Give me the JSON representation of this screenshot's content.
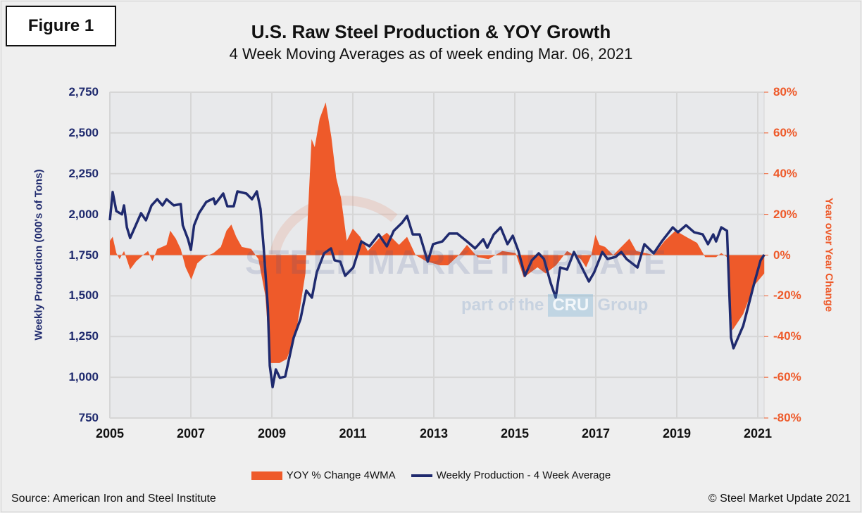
{
  "figure_label": "Figure 1",
  "watermark": {
    "brand": "STEEL MARKET UPDATE",
    "prefix": "part of the",
    "cru": "CRU",
    "suffix": "Group"
  },
  "source": "Source: American Iron and Steel Institute",
  "copyright": "© Steel Market Update 2021",
  "chart_data": {
    "type": "line+area",
    "title": "U.S. Raw Steel Production & YOY Growth",
    "subtitle": "4 Week Moving Averages as of week ending Mar. 06, 2021",
    "ylabel_left": "Weekly Production (000's of Tons)",
    "ylabel_right": "Year over Year Change",
    "xlim": [
      2005,
      2021.16
    ],
    "ylim_left": [
      750,
      2750
    ],
    "ylim_right": [
      -80,
      80
    ],
    "x_ticks": [
      "2005",
      "2007",
      "2009",
      "2011",
      "2013",
      "2015",
      "2017",
      "2019",
      "2021"
    ],
    "y_ticks_left": [
      "750",
      "1,000",
      "1,250",
      "1,500",
      "1,750",
      "2,000",
      "2,250",
      "2,500",
      "2,750"
    ],
    "y_ticks_right": [
      "-80%",
      "-60%",
      "-40%",
      "-20%",
      "0%",
      "20%",
      "40%",
      "60%",
      "80%"
    ],
    "grid": true,
    "legend_position": "bottom",
    "colors": {
      "yoy": "#ee5a2a",
      "production": "#1f2a6e"
    },
    "series": [
      {
        "name": "YOY % Change 4WMA",
        "type": "area",
        "axis": "right",
        "points": [
          [
            2005.0,
            7
          ],
          [
            2005.07,
            9
          ],
          [
            2005.16,
            1
          ],
          [
            2005.24,
            -2
          ],
          [
            2005.35,
            2
          ],
          [
            2005.5,
            -7
          ],
          [
            2005.65,
            -3
          ],
          [
            2005.82,
            0
          ],
          [
            2005.94,
            2
          ],
          [
            2006.05,
            -3
          ],
          [
            2006.17,
            3
          ],
          [
            2006.29,
            4
          ],
          [
            2006.4,
            5
          ],
          [
            2006.49,
            12
          ],
          [
            2006.63,
            8
          ],
          [
            2006.75,
            3
          ],
          [
            2006.87,
            -6
          ],
          [
            2007.01,
            -12
          ],
          [
            2007.16,
            -4
          ],
          [
            2007.33,
            -1
          ],
          [
            2007.56,
            1
          ],
          [
            2007.74,
            4
          ],
          [
            2007.88,
            12
          ],
          [
            2008.0,
            15
          ],
          [
            2008.12,
            9
          ],
          [
            2008.26,
            4
          ],
          [
            2008.49,
            3
          ],
          [
            2008.67,
            -2
          ],
          [
            2008.84,
            -20
          ],
          [
            2008.96,
            -53
          ],
          [
            2009.19,
            -53
          ],
          [
            2009.37,
            -51
          ],
          [
            2009.6,
            -38
          ],
          [
            2009.83,
            -9
          ],
          [
            2009.89,
            20
          ],
          [
            2009.98,
            57
          ],
          [
            2010.06,
            53
          ],
          [
            2010.18,
            67
          ],
          [
            2010.33,
            75
          ],
          [
            2010.47,
            58
          ],
          [
            2010.59,
            38
          ],
          [
            2010.71,
            28
          ],
          [
            2010.85,
            7
          ],
          [
            2011.0,
            13
          ],
          [
            2011.18,
            9
          ],
          [
            2011.37,
            2
          ],
          [
            2011.64,
            8
          ],
          [
            2011.84,
            11
          ],
          [
            2012.14,
            5
          ],
          [
            2012.34,
            9
          ],
          [
            2012.55,
            0
          ],
          [
            2012.81,
            -3
          ],
          [
            2013.15,
            -5
          ],
          [
            2013.35,
            -5
          ],
          [
            2013.62,
            0
          ],
          [
            2013.82,
            5
          ],
          [
            2014.08,
            -1
          ],
          [
            2014.35,
            -2
          ],
          [
            2014.69,
            2
          ],
          [
            2015.02,
            1
          ],
          [
            2015.22,
            -11
          ],
          [
            2015.56,
            -6
          ],
          [
            2015.76,
            -9
          ],
          [
            2016.02,
            -5
          ],
          [
            2016.29,
            2
          ],
          [
            2016.63,
            -2
          ],
          [
            2016.76,
            -6
          ],
          [
            2016.89,
            0
          ],
          [
            2016.99,
            10
          ],
          [
            2017.09,
            5
          ],
          [
            2017.23,
            4
          ],
          [
            2017.43,
            0
          ],
          [
            2017.63,
            4
          ],
          [
            2017.83,
            8
          ],
          [
            2018.0,
            2
          ],
          [
            2018.23,
            1
          ],
          [
            2018.43,
            0
          ],
          [
            2018.7,
            7
          ],
          [
            2018.97,
            12
          ],
          [
            2019.23,
            9
          ],
          [
            2019.5,
            6
          ],
          [
            2019.7,
            -1
          ],
          [
            2019.97,
            -1
          ],
          [
            2020.1,
            1
          ],
          [
            2020.24,
            -1
          ],
          [
            2020.37,
            -37
          ],
          [
            2020.64,
            -29
          ],
          [
            2020.91,
            -15
          ],
          [
            2021.16,
            -9
          ]
        ]
      },
      {
        "name": "Weekly Production - 4 Week Average",
        "type": "line",
        "axis": "left",
        "points": [
          [
            2005.0,
            1964
          ],
          [
            2005.07,
            2137
          ],
          [
            2005.16,
            2020
          ],
          [
            2005.3,
            2000
          ],
          [
            2005.35,
            2055
          ],
          [
            2005.42,
            1920
          ],
          [
            2005.5,
            1855
          ],
          [
            2005.77,
            2007
          ],
          [
            2005.89,
            1964
          ],
          [
            2006.03,
            2055
          ],
          [
            2006.17,
            2093
          ],
          [
            2006.3,
            2055
          ],
          [
            2006.4,
            2093
          ],
          [
            2006.58,
            2055
          ],
          [
            2006.75,
            2063
          ],
          [
            2006.8,
            1933
          ],
          [
            2006.93,
            1847
          ],
          [
            2007.0,
            1782
          ],
          [
            2007.08,
            1933
          ],
          [
            2007.2,
            2007
          ],
          [
            2007.38,
            2076
          ],
          [
            2007.56,
            2098
          ],
          [
            2007.6,
            2063
          ],
          [
            2007.8,
            2128
          ],
          [
            2007.9,
            2050
          ],
          [
            2008.06,
            2050
          ],
          [
            2008.15,
            2141
          ],
          [
            2008.37,
            2128
          ],
          [
            2008.51,
            2093
          ],
          [
            2008.63,
            2141
          ],
          [
            2008.72,
            2033
          ],
          [
            2008.8,
            1790
          ],
          [
            2008.9,
            1428
          ],
          [
            2008.95,
            1070
          ],
          [
            2009.02,
            940
          ],
          [
            2009.1,
            1048
          ],
          [
            2009.2,
            996
          ],
          [
            2009.33,
            1005
          ],
          [
            2009.54,
            1243
          ],
          [
            2009.71,
            1359
          ],
          [
            2009.85,
            1532
          ],
          [
            2009.99,
            1489
          ],
          [
            2010.11,
            1644
          ],
          [
            2010.29,
            1761
          ],
          [
            2010.46,
            1791
          ],
          [
            2010.55,
            1718
          ],
          [
            2010.69,
            1710
          ],
          [
            2010.81,
            1623
          ],
          [
            2011.01,
            1674
          ],
          [
            2011.21,
            1834
          ],
          [
            2011.41,
            1804
          ],
          [
            2011.64,
            1877
          ],
          [
            2011.84,
            1804
          ],
          [
            2012.01,
            1899
          ],
          [
            2012.21,
            1947
          ],
          [
            2012.34,
            1990
          ],
          [
            2012.48,
            1877
          ],
          [
            2012.65,
            1877
          ],
          [
            2012.85,
            1710
          ],
          [
            2012.98,
            1817
          ],
          [
            2013.21,
            1834
          ],
          [
            2013.38,
            1882
          ],
          [
            2013.58,
            1882
          ],
          [
            2013.82,
            1834
          ],
          [
            2014.02,
            1791
          ],
          [
            2014.22,
            1847
          ],
          [
            2014.32,
            1795
          ],
          [
            2014.48,
            1877
          ],
          [
            2014.65,
            1920
          ],
          [
            2014.82,
            1817
          ],
          [
            2014.95,
            1869
          ],
          [
            2015.09,
            1774
          ],
          [
            2015.25,
            1623
          ],
          [
            2015.42,
            1718
          ],
          [
            2015.59,
            1761
          ],
          [
            2015.72,
            1726
          ],
          [
            2015.89,
            1575
          ],
          [
            2016.01,
            1489
          ],
          [
            2016.12,
            1674
          ],
          [
            2016.29,
            1661
          ],
          [
            2016.46,
            1769
          ],
          [
            2016.63,
            1687
          ],
          [
            2016.83,
            1588
          ],
          [
            2016.96,
            1644
          ],
          [
            2017.16,
            1769
          ],
          [
            2017.29,
            1726
          ],
          [
            2017.49,
            1739
          ],
          [
            2017.63,
            1769
          ],
          [
            2017.76,
            1726
          ],
          [
            2018.03,
            1674
          ],
          [
            2018.2,
            1817
          ],
          [
            2018.43,
            1761
          ],
          [
            2018.63,
            1834
          ],
          [
            2018.9,
            1920
          ],
          [
            2019.03,
            1890
          ],
          [
            2019.23,
            1933
          ],
          [
            2019.43,
            1890
          ],
          [
            2019.64,
            1877
          ],
          [
            2019.77,
            1817
          ],
          [
            2019.9,
            1877
          ],
          [
            2019.97,
            1834
          ],
          [
            2020.1,
            1920
          ],
          [
            2020.24,
            1899
          ],
          [
            2020.34,
            1243
          ],
          [
            2020.4,
            1178
          ],
          [
            2020.64,
            1316
          ],
          [
            2020.91,
            1575
          ],
          [
            2021.07,
            1718
          ],
          [
            2021.16,
            1752
          ]
        ]
      }
    ]
  }
}
